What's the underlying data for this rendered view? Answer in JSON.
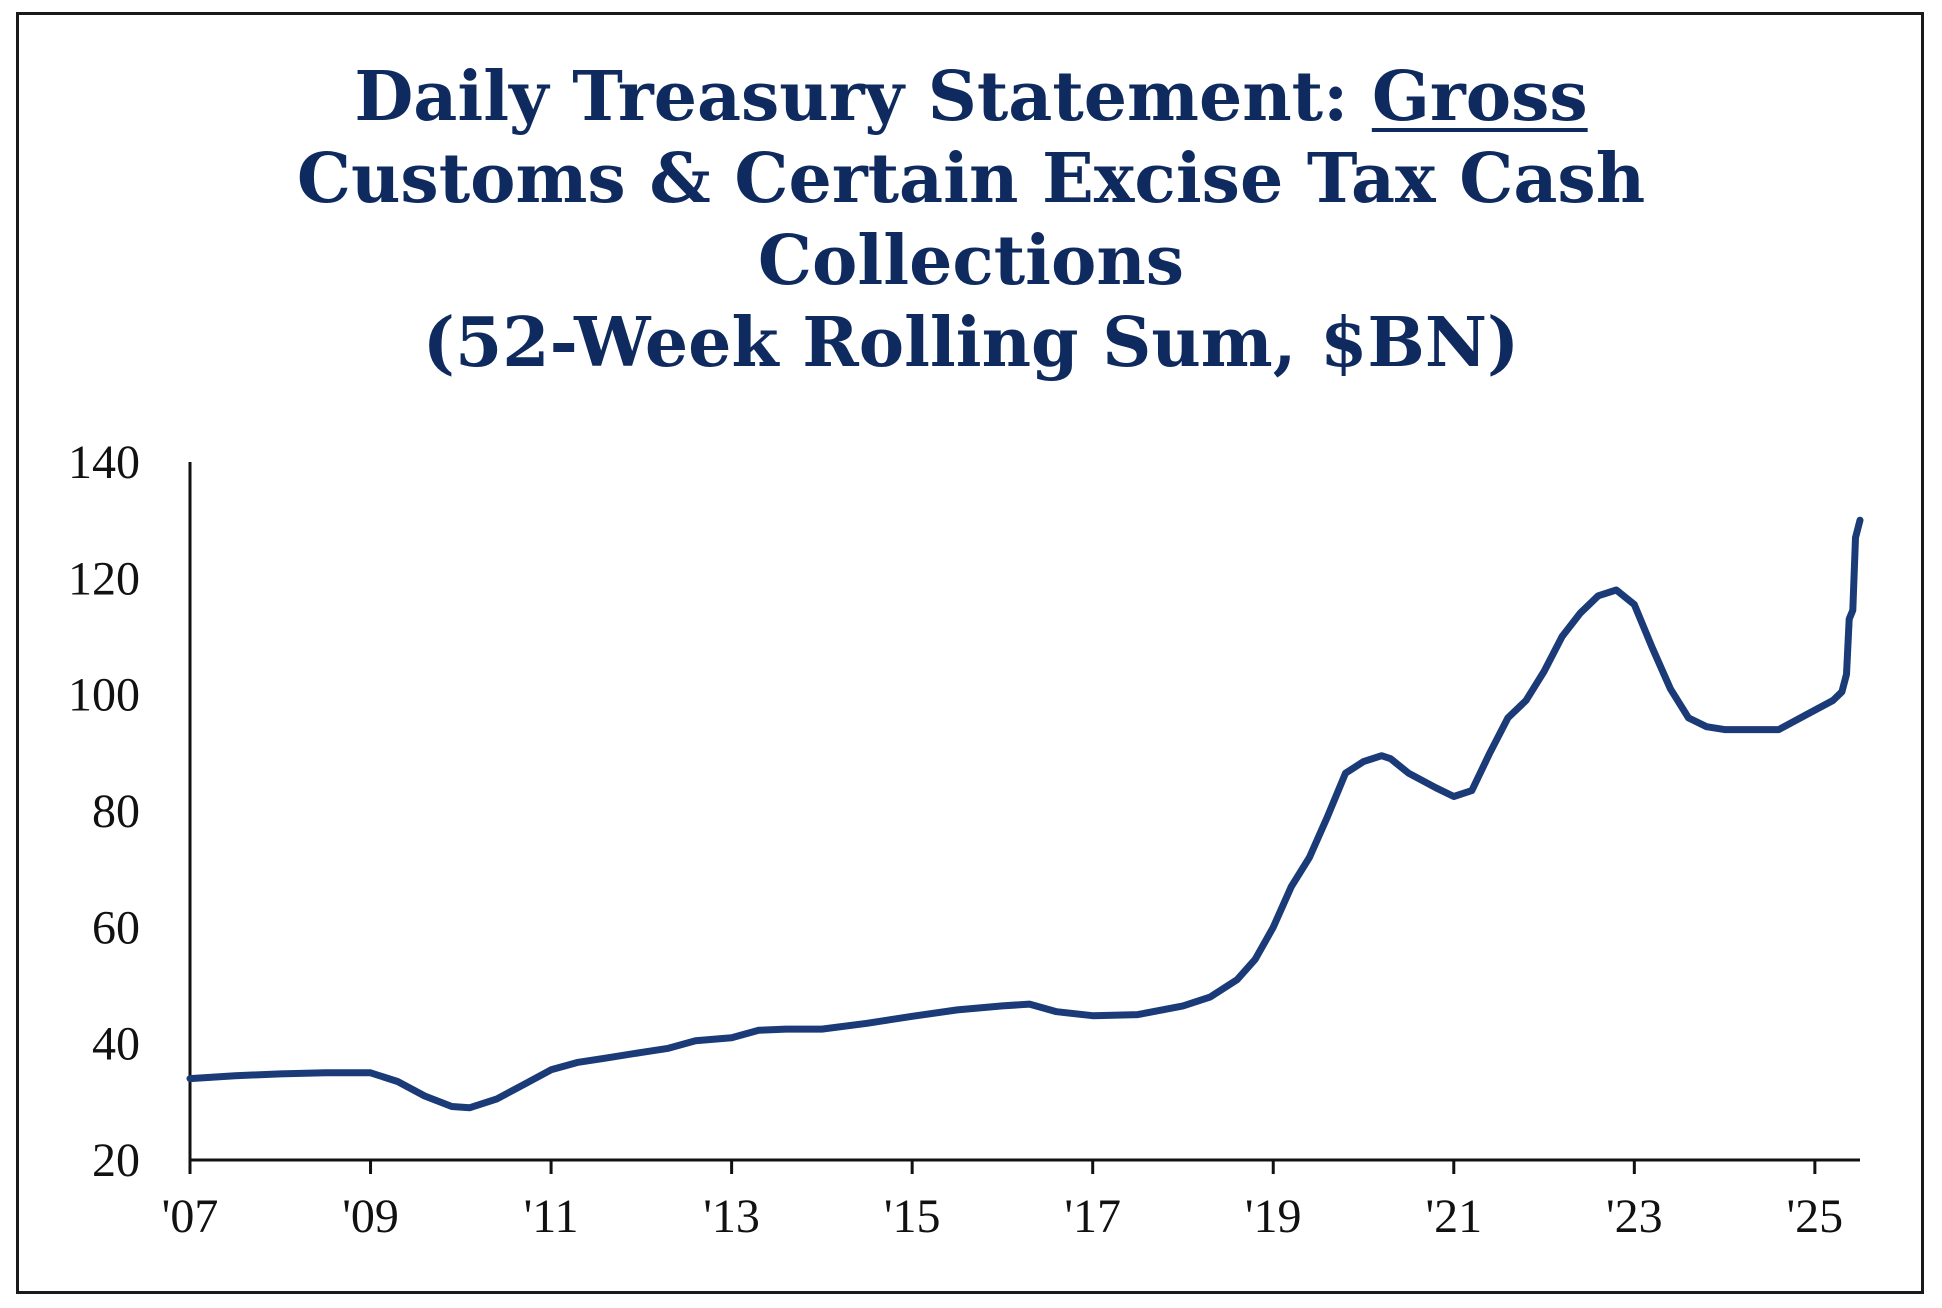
{
  "chart_data": {
    "type": "line",
    "title": {
      "line1_prefix": "Daily Treasury Statement: ",
      "line1_underlined": "Gross",
      "line2": "Customs & Certain Excise Tax Cash",
      "line3": "Collections",
      "line4": "(52-Week Rolling Sum, $BN)"
    },
    "xlabel": "",
    "ylabel": "",
    "xlim": [
      2007.0,
      2025.5
    ],
    "ylim": [
      20,
      140
    ],
    "yticks": [
      20,
      40,
      60,
      80,
      100,
      120,
      140
    ],
    "xticks": [
      {
        "x": 2007,
        "label": "'07"
      },
      {
        "x": 2009,
        "label": "'09"
      },
      {
        "x": 2011,
        "label": "'11"
      },
      {
        "x": 2013,
        "label": "'13"
      },
      {
        "x": 2015,
        "label": "'15"
      },
      {
        "x": 2017,
        "label": "'17"
      },
      {
        "x": 2019,
        "label": "'19"
      },
      {
        "x": 2021,
        "label": "'21"
      },
      {
        "x": 2023,
        "label": "'23"
      },
      {
        "x": 2025,
        "label": "'25"
      }
    ],
    "grid": false,
    "legend": "none",
    "line_color": "#1b3a78",
    "series": [
      {
        "x": [
          2007.0,
          2007.5,
          2008.0,
          2008.5,
          2009.0,
          2009.3,
          2009.6,
          2009.9,
          2010.1,
          2010.4,
          2010.7,
          2011.0,
          2011.3,
          2011.6,
          2012.0,
          2012.3,
          2012.6,
          2013.0,
          2013.3,
          2013.6,
          2014.0,
          2014.5,
          2015.0,
          2015.5,
          2016.0,
          2016.3,
          2016.6,
          2017.0,
          2017.5,
          2018.0,
          2018.3,
          2018.6,
          2018.8,
          2019.0,
          2019.2,
          2019.4,
          2019.6,
          2019.8,
          2020.0,
          2020.2,
          2020.3,
          2020.5,
          2020.8,
          2021.0,
          2021.2,
          2021.4,
          2021.6,
          2021.8,
          2022.0,
          2022.2,
          2022.4,
          2022.6,
          2022.8,
          2023.0,
          2023.2,
          2023.4,
          2023.6,
          2023.8,
          2024.0,
          2024.3,
          2024.6,
          2024.9,
          2025.2,
          2025.3,
          2025.35,
          2025.38,
          2025.42,
          2025.45,
          2025.5
        ],
        "y": [
          34,
          34.5,
          34.8,
          35,
          35,
          33.5,
          31,
          29.2,
          29,
          30.5,
          33,
          35.5,
          36.8,
          37.5,
          38.5,
          39.2,
          40.5,
          41,
          42.3,
          42.5,
          42.5,
          43.5,
          44.7,
          45.8,
          46.5,
          46.8,
          45.5,
          44.8,
          45,
          46.5,
          48,
          51,
          54.5,
          60,
          67,
          72,
          79,
          86.5,
          88.5,
          89.5,
          89,
          86.5,
          84,
          82.5,
          83.5,
          90,
          96,
          99,
          104,
          110,
          114,
          117,
          118,
          115.5,
          108,
          101,
          96,
          94.5,
          94,
          94,
          94,
          96.5,
          99,
          100.5,
          103.5,
          113,
          114.5,
          127,
          130
        ]
      }
    ]
  }
}
